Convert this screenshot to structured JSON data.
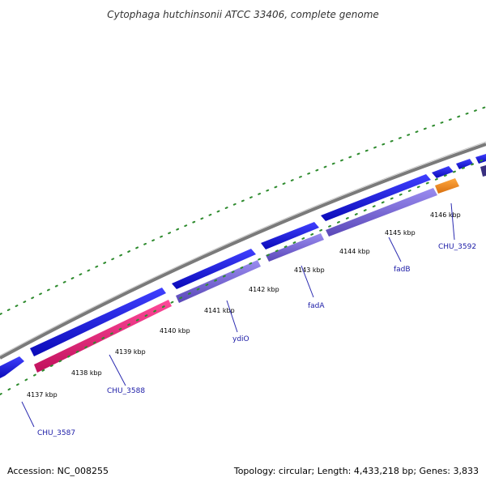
{
  "title": "Cytophaga hutchinsonii ATCC 33406, complete genome",
  "footer": {
    "accession": "Accession: NC_008255",
    "summary": "Topology: circular; Length: 4,433,218 bp; Genes: 3,833"
  },
  "colors": {
    "backbone": "#888888",
    "tick_marks": "#2e8b2e",
    "forward_gene": "#1414e0",
    "reverse_gene": "#7b68d8",
    "highlight_gene": "#e8247a",
    "rna_gene": "#f0901c",
    "label_line": "#2a2ab0"
  },
  "ticks": [
    {
      "label": "4137 kbp"
    },
    {
      "label": "4138 kbp"
    },
    {
      "label": "4139 kbp"
    },
    {
      "label": "4140 kbp"
    },
    {
      "label": "4141 kbp"
    },
    {
      "label": "4142 kbp"
    },
    {
      "label": "4143 kbp"
    },
    {
      "label": "4144 kbp"
    },
    {
      "label": "4145 kbp"
    },
    {
      "label": "4146 kbp"
    }
  ],
  "gene_labels": [
    {
      "name": "CHU_3587"
    },
    {
      "name": "CHU_3588"
    },
    {
      "name": "ydiO"
    },
    {
      "name": "fadA"
    },
    {
      "name": "fadB"
    },
    {
      "name": "CHU_3592"
    }
  ]
}
